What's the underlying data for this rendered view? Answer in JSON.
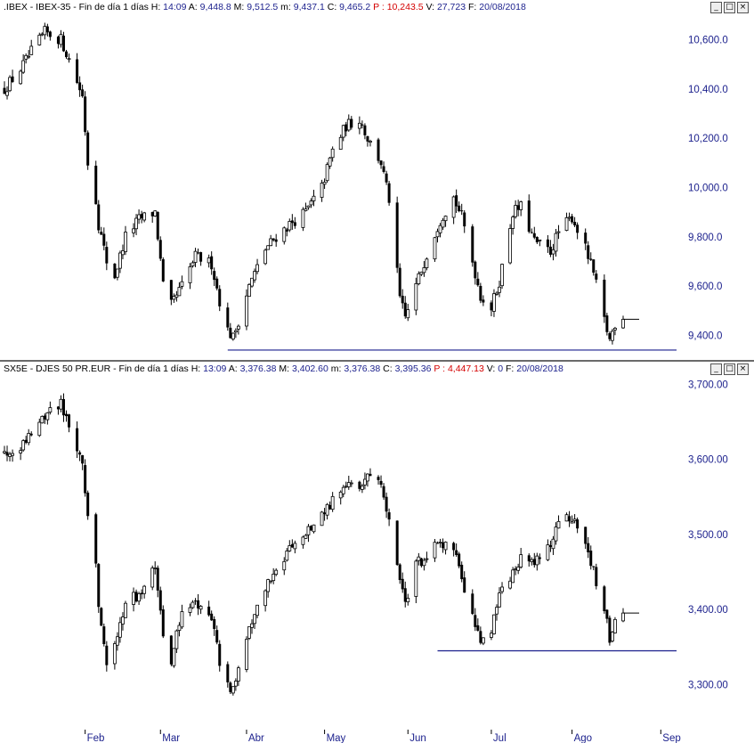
{
  "colors": {
    "candle": "#000000",
    "support_line": "#1a1f8c",
    "axis_text": "#1a1f8c",
    "header_red": "#d40000"
  },
  "window_buttons": [
    "_",
    "□",
    "×"
  ],
  "panels": [
    {
      "header": {
        "symbol": ".IBEX - IBEX-35 - Fin de día 1 días",
        "h_label": "H:",
        "h_value": "14:09",
        "a_label": "A:",
        "a_value": "9,448.8",
        "m_label": "M:",
        "m_value": "9,512.5",
        "mm_label": "m:",
        "mm_value": "9,437.1",
        "c_label": "C:",
        "c_value": "9,465.2",
        "p_label": "P :",
        "p_value": "10,243.5",
        "v_label": "V:",
        "v_value": "27,723",
        "f_label": "F:",
        "f_value": "20/08/2018"
      }
    },
    {
      "header": {
        "symbol": "SX5E - DJES 50 PR.EUR - Fin de día 1 días",
        "h_label": "H:",
        "h_value": "13:09",
        "a_label": "A:",
        "a_value": "3,376.38",
        "m_label": "M:",
        "m_value": "3,402.60",
        "mm_label": "m:",
        "mm_value": "3,376.38",
        "c_label": "C:",
        "c_value": "3,395.36",
        "p_label": "P :",
        "p_value": "4,447.13",
        "v_label": "V:",
        "v_value": "0",
        "f_label": "F:",
        "f_value": "20/08/2018"
      }
    }
  ],
  "x_axis": {
    "labels": [
      "Feb",
      "Mar",
      "Abr",
      "May",
      "Jun",
      "Jul",
      "Ago",
      "Sep"
    ],
    "label_dates": [
      "2018-02-01",
      "2018-03-01",
      "2018-04-02",
      "2018-05-01",
      "2018-06-01",
      "2018-07-02",
      "2018-08-01",
      "2018-09-03"
    ]
  },
  "chart_data": [
    {
      "type": "candlestick",
      "title": "",
      "ylim": [
        9300,
        10700
      ],
      "yticks": [
        9400,
        9600,
        9800,
        10000,
        10200,
        10400,
        10600
      ],
      "ytick_labels": [
        "9,400.0",
        "9,600.0",
        "9,800.0",
        "10,000.0",
        "10,200.0",
        "10,400.0",
        "10,600.0"
      ],
      "date_range": [
        "2018-01-02",
        "2018-08-20"
      ],
      "anchors": [
        [
          "2018-01-02",
          10400
        ],
        [
          "2018-01-08",
          10480
        ],
        [
          "2018-01-12",
          10550
        ],
        [
          "2018-01-17",
          10630
        ],
        [
          "2018-01-23",
          10600
        ],
        [
          "2018-01-26",
          10520
        ],
        [
          "2018-01-31",
          10370
        ],
        [
          "2018-02-02",
          10100
        ],
        [
          "2018-02-05",
          9950
        ],
        [
          "2018-02-06",
          9850
        ],
        [
          "2018-02-09",
          9700
        ],
        [
          "2018-02-12",
          9640
        ],
        [
          "2018-02-16",
          9800
        ],
        [
          "2018-02-21",
          9870
        ],
        [
          "2018-02-27",
          9900
        ],
        [
          "2018-03-02",
          9600
        ],
        [
          "2018-03-05",
          9520
        ],
        [
          "2018-03-09",
          9600
        ],
        [
          "2018-03-14",
          9720
        ],
        [
          "2018-03-20",
          9690
        ],
        [
          "2018-03-23",
          9540
        ],
        [
          "2018-03-26",
          9420
        ],
        [
          "2018-03-28",
          9390
        ],
        [
          "2018-04-03",
          9600
        ],
        [
          "2018-04-09",
          9750
        ],
        [
          "2018-04-13",
          9800
        ],
        [
          "2018-04-18",
          9850
        ],
        [
          "2018-04-24",
          9900
        ],
        [
          "2018-04-30",
          10000
        ],
        [
          "2018-05-04",
          10150
        ],
        [
          "2018-05-09",
          10250
        ],
        [
          "2018-05-14",
          10280
        ],
        [
          "2018-05-17",
          10200
        ],
        [
          "2018-05-22",
          10100
        ],
        [
          "2018-05-25",
          9950
        ],
        [
          "2018-05-29",
          9550
        ],
        [
          "2018-05-31",
          9470
        ],
        [
          "2018-06-04",
          9600
        ],
        [
          "2018-06-08",
          9730
        ],
        [
          "2018-06-13",
          9870
        ],
        [
          "2018-06-18",
          9960
        ],
        [
          "2018-06-21",
          9880
        ],
        [
          "2018-06-25",
          9700
        ],
        [
          "2018-06-28",
          9560
        ],
        [
          "2018-07-02",
          9510
        ],
        [
          "2018-07-05",
          9620
        ],
        [
          "2018-07-10",
          9900
        ],
        [
          "2018-07-13",
          9920
        ],
        [
          "2018-07-18",
          9780
        ],
        [
          "2018-07-24",
          9740
        ],
        [
          "2018-07-27",
          9820
        ],
        [
          "2018-08-01",
          9880
        ],
        [
          "2018-08-03",
          9830
        ],
        [
          "2018-08-06",
          9750
        ],
        [
          "2018-08-09",
          9650
        ],
        [
          "2018-08-13",
          9460
        ],
        [
          "2018-08-15",
          9380
        ],
        [
          "2018-08-17",
          9450
        ],
        [
          "2018-08-20",
          9465
        ]
      ],
      "support_level": 9340,
      "support_start": "2018-03-26",
      "last_close": 9465.2
    },
    {
      "type": "candlestick",
      "title": "",
      "ylim": [
        3240,
        3710
      ],
      "yticks": [
        3300,
        3400,
        3500,
        3600,
        3700
      ],
      "ytick_labels": [
        "3,300.00",
        "3,400.00",
        "3,500.00",
        "3,600.00",
        "3,700.00"
      ],
      "date_range": [
        "2018-01-02",
        "2018-08-20"
      ],
      "anchors": [
        [
          "2018-01-02",
          3610
        ],
        [
          "2018-01-08",
          3620
        ],
        [
          "2018-01-15",
          3650
        ],
        [
          "2018-01-19",
          3665
        ],
        [
          "2018-01-23",
          3675
        ],
        [
          "2018-01-26",
          3645
        ],
        [
          "2018-01-31",
          3600
        ],
        [
          "2018-02-02",
          3520
        ],
        [
          "2018-02-05",
          3460
        ],
        [
          "2018-02-06",
          3410
        ],
        [
          "2018-02-09",
          3330
        ],
        [
          "2018-02-12",
          3350
        ],
        [
          "2018-02-16",
          3410
        ],
        [
          "2018-02-21",
          3420
        ],
        [
          "2018-02-27",
          3460
        ],
        [
          "2018-03-02",
          3360
        ],
        [
          "2018-03-05",
          3330
        ],
        [
          "2018-03-09",
          3400
        ],
        [
          "2018-03-14",
          3410
        ],
        [
          "2018-03-20",
          3385
        ],
        [
          "2018-03-23",
          3330
        ],
        [
          "2018-03-26",
          3300
        ],
        [
          "2018-03-28",
          3290
        ],
        [
          "2018-04-03",
          3380
        ],
        [
          "2018-04-09",
          3430
        ],
        [
          "2018-04-13",
          3460
        ],
        [
          "2018-04-18",
          3480
        ],
        [
          "2018-04-24",
          3500
        ],
        [
          "2018-04-30",
          3530
        ],
        [
          "2018-05-04",
          3545
        ],
        [
          "2018-05-09",
          3560
        ],
        [
          "2018-05-15",
          3570
        ],
        [
          "2018-05-18",
          3580
        ],
        [
          "2018-05-22",
          3570
        ],
        [
          "2018-05-25",
          3520
        ],
        [
          "2018-05-29",
          3440
        ],
        [
          "2018-05-31",
          3410
        ],
        [
          "2018-06-04",
          3460
        ],
        [
          "2018-06-08",
          3470
        ],
        [
          "2018-06-13",
          3490
        ],
        [
          "2018-06-18",
          3480
        ],
        [
          "2018-06-21",
          3440
        ],
        [
          "2018-06-25",
          3390
        ],
        [
          "2018-06-28",
          3360
        ],
        [
          "2018-07-02",
          3370
        ],
        [
          "2018-07-05",
          3420
        ],
        [
          "2018-07-10",
          3450
        ],
        [
          "2018-07-13",
          3470
        ],
        [
          "2018-07-18",
          3460
        ],
        [
          "2018-07-24",
          3490
        ],
        [
          "2018-07-27",
          3510
        ],
        [
          "2018-08-01",
          3525
        ],
        [
          "2018-08-03",
          3500
        ],
        [
          "2018-08-06",
          3480
        ],
        [
          "2018-08-09",
          3450
        ],
        [
          "2018-08-13",
          3400
        ],
        [
          "2018-08-15",
          3360
        ],
        [
          "2018-08-17",
          3385
        ],
        [
          "2018-08-20",
          3395
        ]
      ],
      "support_level": 3345,
      "support_start": "2018-06-12",
      "last_close": 3395.36
    }
  ]
}
